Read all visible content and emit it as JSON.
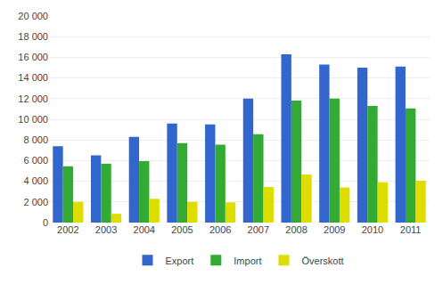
{
  "chart_data": {
    "type": "bar",
    "categories": [
      "2002",
      "2003",
      "2004",
      "2005",
      "2006",
      "2007",
      "2008",
      "2009",
      "2010",
      "2011"
    ],
    "series": [
      {
        "name": "Export",
        "color": "#3366cc",
        "values": [
          7400,
          6500,
          8300,
          9600,
          9500,
          12000,
          16300,
          15300,
          15000,
          15100
        ]
      },
      {
        "name": "Import",
        "color": "#33aa33",
        "values": [
          5450,
          5700,
          5950,
          7700,
          7550,
          8550,
          11800,
          12000,
          11300,
          11050
        ]
      },
      {
        "name": "Överskott",
        "color": "#dddd00",
        "values": [
          2000,
          850,
          2300,
          2000,
          1950,
          3450,
          4650,
          3400,
          3900,
          4050
        ]
      }
    ],
    "ylim": [
      0,
      20000
    ],
    "yticks": [
      0,
      {
        "value": 2000,
        "label": "2 000"
      },
      {
        "value": 4000,
        "label": "4 000"
      },
      {
        "value": 6000,
        "label": "6 000"
      },
      {
        "value": 8000,
        "label": "8 000"
      },
      {
        "value": 10000,
        "label": "10 000"
      },
      {
        "value": 12000,
        "label": "12 000"
      },
      {
        "value": 14000,
        "label": "14 000"
      },
      {
        "value": 16000,
        "label": "16 000"
      },
      {
        "value": 18000,
        "label": "18 000"
      },
      {
        "value": 20000,
        "label": "20 000"
      }
    ],
    "grid": true,
    "legend": "bottom"
  }
}
